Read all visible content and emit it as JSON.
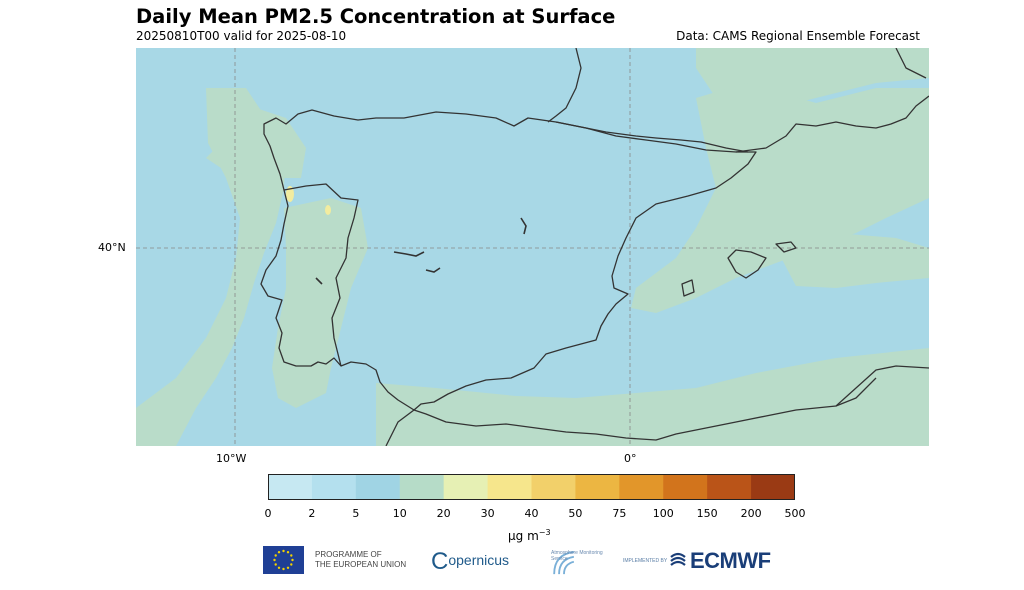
{
  "header": {
    "title": "Daily Mean PM2.5 Concentration at Surface",
    "subtitle": "20250810T00 valid for 2025-08-10",
    "source": "Data: CAMS Regional Ensemble Forecast"
  },
  "map": {
    "lat_labels": [
      "40°N"
    ],
    "lon_labels": [
      "10°W",
      "0°"
    ],
    "colors": {
      "land_sea_low": "#a8d8e6",
      "band_mid": "#b9dcc9",
      "band_low_high": "#f2ec9f",
      "coastline": "#333333",
      "gridline": "#888888"
    }
  },
  "colorbar": {
    "boundaries": [
      "0",
      "2",
      "5",
      "10",
      "20",
      "30",
      "40",
      "50",
      "75",
      "100",
      "150",
      "200",
      "500"
    ],
    "colors": [
      "#c6e8f2",
      "#b4e0ee",
      "#a0d4e4",
      "#b6dcc8",
      "#e6f0b4",
      "#f6e68c",
      "#f2d06a",
      "#ecb642",
      "#e2962a",
      "#d2741c",
      "#ba5418",
      "#9a3a14"
    ],
    "unit_main": "μg m",
    "unit_exp": "−3"
  },
  "footer": {
    "eu_line1": "PROGRAMME OF",
    "eu_line2": "THE EUROPEAN UNION",
    "copernicus": "opernicus",
    "copernicus_c": "C",
    "cams_text": "Atmosphere Monitoring Service",
    "ecmwf_small": "IMPLEMENTED BY",
    "ecmwf": "ECMWF"
  }
}
